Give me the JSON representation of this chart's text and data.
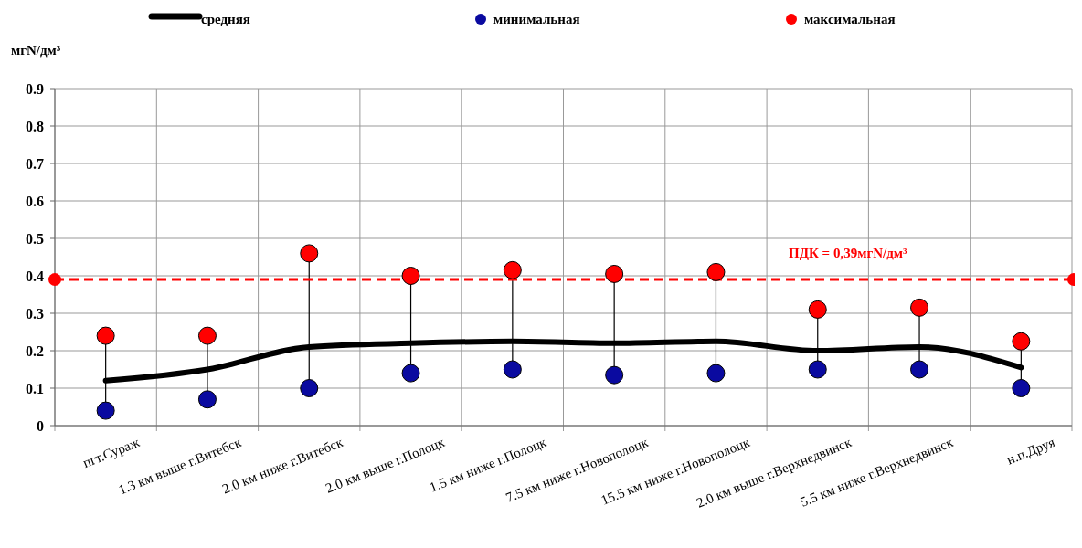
{
  "chart_data": {
    "type": "line",
    "ylabel": "мгN/дм³",
    "categories": [
      "пгт.Сураж",
      "1.3 км выше г.Витебск",
      "2.0 км ниже г.Витебск",
      "2.0 км выше г.Полоцк",
      "1.5 км ниже г.Полоцк",
      "7.5 км ниже г.Новополоцк",
      "15.5 км ниже г.Новополоцк",
      "2.0 км выше г.Верхнедвинск",
      "5.5 км ниже г.Верхнедвинск",
      "н.п.Друя"
    ],
    "series": [
      {
        "name": "средняя",
        "color": "#000000",
        "marker": "none",
        "values": [
          0.12,
          0.15,
          0.21,
          0.22,
          0.225,
          0.22,
          0.225,
          0.2,
          0.21,
          0.155
        ]
      },
      {
        "name": "минимальная",
        "type": "scatter",
        "color": "#0a0aa0",
        "marker": "circle",
        "values": [
          0.04,
          0.07,
          0.1,
          0.14,
          0.15,
          0.135,
          0.14,
          0.15,
          0.15,
          0.1
        ]
      },
      {
        "name": "максимальная",
        "type": "scatter",
        "color": "#ff0000",
        "marker": "circle",
        "values": [
          0.24,
          0.24,
          0.46,
          0.4,
          0.415,
          0.405,
          0.41,
          0.31,
          0.315,
          0.225
        ]
      }
    ],
    "ylim": [
      0,
      0.9
    ],
    "yticks": [
      0,
      0.1,
      0.2,
      0.3,
      0.4,
      0.5,
      0.6,
      0.7,
      0.8,
      0.9
    ],
    "ref_lines": [
      {
        "axis": "y",
        "value": 0.39,
        "label": "ПДК = 0,39мгN/дм³",
        "color": "#ff0000",
        "line_style": "dashed"
      }
    ],
    "grid": true,
    "legend": "top"
  }
}
